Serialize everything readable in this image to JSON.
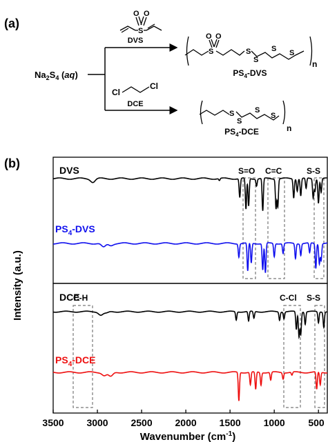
{
  "panel_a": {
    "label": "(a)",
    "reactant": {
      "main": "Na",
      "sub1": "2",
      "s": "S",
      "sub2": "4",
      "open": " (",
      "aq": "aq",
      "close": ")"
    },
    "reagent_top": "DVS",
    "reagent_bottom": "DCE",
    "reagent_bottom_cl_left": "Cl",
    "reagent_bottom_cl_right": "Cl",
    "product_top": {
      "main": "PS",
      "sub": "4",
      "rest": "-DVS",
      "n": "n"
    },
    "product_bottom": {
      "main": "PS",
      "sub": "4",
      "rest": "-DCE",
      "n": "n"
    },
    "dvs_atoms": {
      "s": "S",
      "o1": "O",
      "o2": "O"
    },
    "ps4dvs_atoms": [
      "S",
      "O",
      "O",
      "S",
      "S",
      "S",
      "S"
    ],
    "ps4dce_atoms": [
      "S",
      "S",
      "S",
      "S"
    ]
  },
  "panel_b": {
    "label": "(b)",
    "top_labels": {
      "dvs": "DVS",
      "ps4dvs_main": "PS",
      "ps4dvs_sub": "4",
      "ps4dvs_rest": "-DVS"
    },
    "bottom_labels": {
      "dce": "DCE",
      "ps4dce_main": "PS",
      "ps4dce_sub": "4",
      "ps4dce_rest": "-DCE"
    },
    "band_labels_top": [
      "S=O",
      "C=C",
      "S-S"
    ],
    "band_labels_bottom": [
      "C-H",
      "C-Cl",
      "S-S"
    ],
    "ylabel": "Intensity (a.u.)",
    "xlabel_main": "Wavenumber (cm",
    "xlabel_sup": "-1",
    "xlabel_close": ")"
  },
  "chart_data": {
    "type": "line",
    "xlim": [
      3500,
      400
    ],
    "x_ticks": [
      3500,
      3000,
      2500,
      2000,
      1500,
      1000,
      500
    ],
    "x_tick_labels": [
      "3500",
      "3000",
      "2500",
      "2000",
      "1500",
      "1000",
      "500"
    ],
    "colors": {
      "DVS": "#000000",
      "PS4-DVS": "#1010ee",
      "DCE": "#000000",
      "PS4-DCE": "#ee1010"
    },
    "series": [
      {
        "name": "DVS",
        "baseline": 0.0,
        "peaks": [
          [
            3050,
            0.1
          ],
          [
            1620,
            0.06
          ],
          [
            1390,
            0.55
          ],
          [
            1320,
            0.9
          ],
          [
            1290,
            0.8
          ],
          [
            1200,
            0.2
          ],
          [
            1130,
            0.95
          ],
          [
            980,
            0.85
          ],
          [
            960,
            0.8
          ],
          [
            780,
            0.55
          ],
          [
            740,
            0.35
          ],
          [
            700,
            0.5
          ],
          [
            640,
            0.3
          ],
          [
            560,
            0.55
          ],
          [
            540,
            0.35
          ],
          [
            500,
            0.7
          ],
          [
            470,
            0.4
          ]
        ]
      },
      {
        "name": "PS4-DVS",
        "baseline": 0.0,
        "peaks": [
          [
            2930,
            0.12
          ],
          [
            2850,
            0.06
          ],
          [
            1400,
            0.4
          ],
          [
            1300,
            0.85
          ],
          [
            1260,
            0.6
          ],
          [
            1130,
            0.8
          ],
          [
            1100,
            0.9
          ],
          [
            1000,
            0.4
          ],
          [
            900,
            0.3
          ],
          [
            760,
            0.45
          ],
          [
            700,
            0.35
          ],
          [
            600,
            0.3
          ],
          [
            530,
            0.75
          ],
          [
            490,
            0.6
          ],
          [
            470,
            0.5
          ]
        ]
      },
      {
        "name": "DCE",
        "baseline": 0.0,
        "peaks": [
          [
            2960,
            0.12
          ],
          [
            2900,
            0.06
          ],
          [
            1430,
            0.3
          ],
          [
            1290,
            0.35
          ],
          [
            1230,
            0.25
          ],
          [
            940,
            0.3
          ],
          [
            890,
            0.25
          ],
          [
            750,
            0.65
          ],
          [
            720,
            0.9
          ],
          [
            700,
            0.8
          ],
          [
            650,
            0.45
          ],
          [
            500,
            0.4
          ],
          [
            440,
            0.55
          ]
        ]
      },
      {
        "name": "PS4-DCE",
        "baseline": 0.0,
        "peaks": [
          [
            2920,
            0.1
          ],
          [
            2850,
            0.14
          ],
          [
            1400,
            0.9
          ],
          [
            1270,
            0.4
          ],
          [
            1210,
            0.55
          ],
          [
            1150,
            0.4
          ],
          [
            1040,
            0.25
          ],
          [
            900,
            0.2
          ],
          [
            800,
            0.1
          ],
          [
            520,
            0.55
          ],
          [
            480,
            0.4
          ]
        ]
      }
    ]
  }
}
